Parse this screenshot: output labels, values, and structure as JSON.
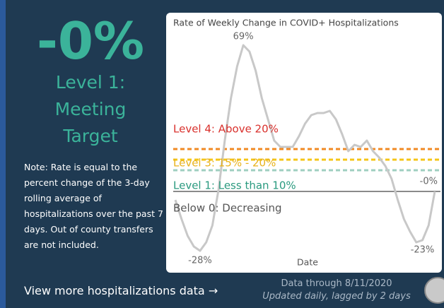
{
  "panel": {
    "metric": "-0%",
    "status": "Level 1: Meeting Target",
    "note": "Note: Rate is equal to the percent change of the 3-day rolling average of hospitalizations over the past 7 days. Out of county transfers are not included.",
    "link": "View more hospitalizations data →",
    "data_through": "Data through 8/11/2020",
    "updated": "Updated daily, lagged by 2 days"
  },
  "chart_data": {
    "type": "line",
    "title": "Rate of Weekly Change in COVID+ Hospitalizations",
    "x_label": "Date",
    "series": [
      {
        "name": "Rate of Weekly Change",
        "color": "#c8c8c8",
        "values": [
          -4,
          -13,
          -21,
          -26,
          -28,
          -24,
          -16,
          1,
          24,
          44,
          59,
          69,
          66,
          57,
          44,
          34,
          24,
          21,
          21,
          21,
          26,
          32,
          36,
          37,
          37,
          38,
          34,
          27,
          19,
          22,
          21,
          24,
          19,
          16,
          12,
          6,
          -4,
          -13,
          -19,
          -24,
          -23,
          -16,
          0
        ],
        "value_labels": [
          null,
          null,
          null,
          null,
          "-28%",
          null,
          null,
          null,
          null,
          null,
          null,
          "69%",
          null,
          null,
          null,
          null,
          null,
          null,
          null,
          null,
          null,
          null,
          null,
          null,
          null,
          null,
          null,
          null,
          null,
          null,
          null,
          null,
          null,
          null,
          null,
          null,
          null,
          null,
          null,
          null,
          "-23%",
          null,
          "-0%"
        ]
      }
    ],
    "thresholds": [
      {
        "label": "Level 4: Above 20%",
        "value": 20,
        "color": "#f08a24",
        "label_color": "#d9302c",
        "dashed": true
      },
      {
        "label": "Level 3: 15% - 20%",
        "value": 15,
        "color": "#f5c518",
        "label_color": "#e8b21c",
        "dashed": true
      },
      {
        "label": "Level 1: Less than 10%",
        "value": 10,
        "color": "#9fcfc0",
        "label_color": "#2a9a7f",
        "dashed": true
      },
      {
        "label": "Below 0: Decreasing",
        "value": 0,
        "color": "#8a8a8a",
        "label_color": "#555555",
        "dashed": false
      }
    ],
    "ylim": [
      -31,
      77
    ]
  }
}
